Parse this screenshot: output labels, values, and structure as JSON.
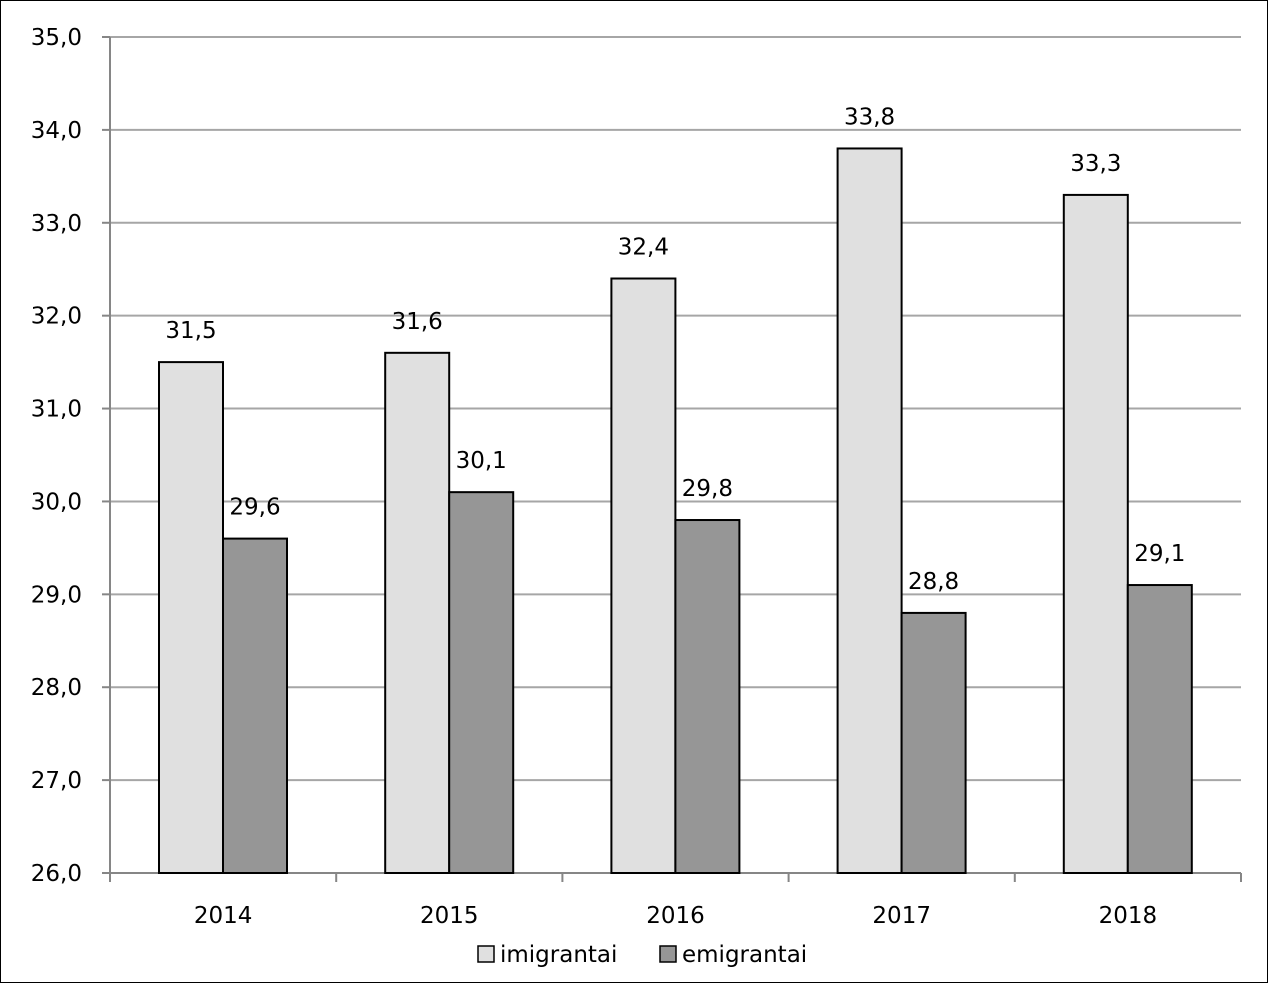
{
  "chart_data": {
    "type": "bar",
    "categories": [
      "2014",
      "2015",
      "2016",
      "2017",
      "2018"
    ],
    "series": [
      {
        "name": "imigrantai",
        "values": [
          31.5,
          31.6,
          32.4,
          33.8,
          33.3
        ],
        "labels": [
          "31,5",
          "31,6",
          "32,4",
          "33,8",
          "33,3"
        ],
        "color": "#e0e0e0"
      },
      {
        "name": "emigrantai",
        "values": [
          29.6,
          30.1,
          29.8,
          28.8,
          29.1
        ],
        "labels": [
          "29,6",
          "30,1",
          "29,8",
          "28,8",
          "29,1"
        ],
        "color": "#969696"
      }
    ],
    "ylim": [
      26.0,
      35.0
    ],
    "yticks": [
      {
        "value": 26,
        "label": "26,0"
      },
      {
        "value": 27,
        "label": "27,0"
      },
      {
        "value": 28,
        "label": "28,0"
      },
      {
        "value": 29,
        "label": "29,0"
      },
      {
        "value": 30,
        "label": "30,0"
      },
      {
        "value": 31,
        "label": "31,0"
      },
      {
        "value": 32,
        "label": "32,0"
      },
      {
        "value": 33,
        "label": "33,0"
      },
      {
        "value": 34,
        "label": "34,0"
      },
      {
        "value": 35,
        "label": "35,0"
      }
    ],
    "title": "",
    "xlabel": "",
    "ylabel": "",
    "grid": true,
    "gridColor": "#a6a6a6",
    "legend": "bottom"
  }
}
